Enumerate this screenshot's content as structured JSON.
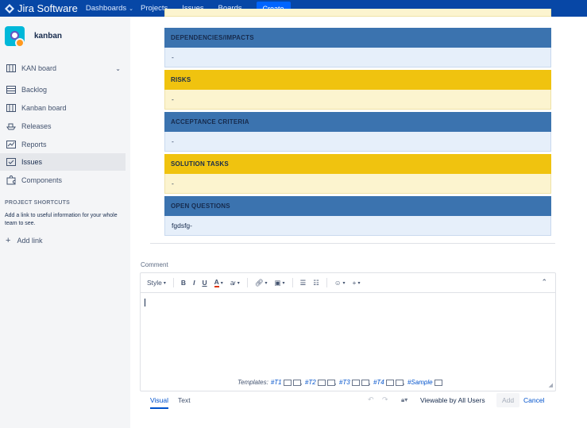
{
  "topbar": {
    "brand": "Jira Software",
    "nav": [
      "Dashboards",
      "Projects",
      "Issues",
      "Boards"
    ],
    "create_label": "Create"
  },
  "sidebar": {
    "project_name": "kanban",
    "board_selector": "KAN board",
    "items": [
      "Backlog",
      "Kanban board",
      "Releases",
      "Reports",
      "Issues",
      "Components"
    ],
    "active_item": "Issues",
    "shortcuts_heading": "PROJECT SHORTCUTS",
    "shortcuts_text": "Add a link to useful information for your whole team to see.",
    "add_link": "Add link"
  },
  "sections": [
    {
      "title": "DEPENDENCIES/IMPACTS",
      "body": "-",
      "color": "blue"
    },
    {
      "title": "RISKS",
      "body": "-",
      "color": "yellow"
    },
    {
      "title": "ACCEPTANCE CRITERIA",
      "body": "-",
      "color": "blue"
    },
    {
      "title": "SOLUTION TASKS",
      "body": "-",
      "color": "yellow"
    },
    {
      "title": "OPEN QUESTIONS",
      "body": "fgdsfg-",
      "color": "blue"
    }
  ],
  "comment": {
    "label": "Comment",
    "toolbar": {
      "style": "Style",
      "bold": "B",
      "italic": "I",
      "underline": "U",
      "color": "A"
    },
    "templates_label": "Templates:",
    "templates": [
      "#T1",
      "#T2",
      "#T3",
      "#T4",
      "#Sample"
    ],
    "tab_visual": "Visual",
    "tab_text": "Text",
    "viewable": "Viewable by All Users",
    "add": "Add",
    "cancel": "Cancel"
  },
  "colors": {
    "topbar": "#0747a6",
    "section_blue": "#3b73af",
    "section_yellow": "#f0c30f",
    "link": "#0052cc"
  }
}
